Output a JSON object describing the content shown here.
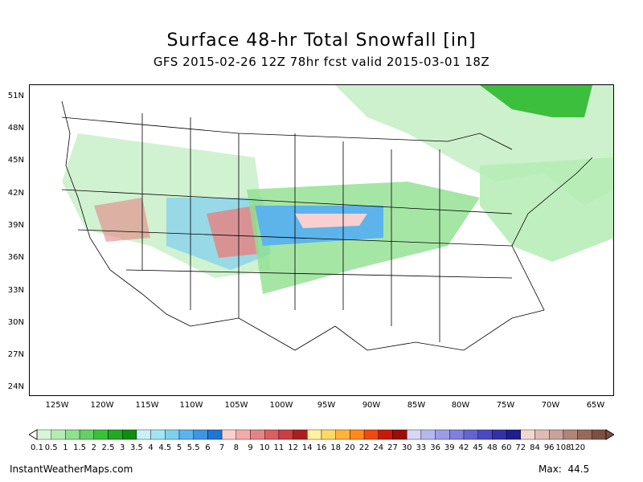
{
  "title": "Surface 48-hr Total Snowfall [in]",
  "subtitle": "GFS 2015-02-26 12Z 78hr fcst valid 2015-03-01 18Z",
  "lat_labels": [
    "51N",
    "48N",
    "45N",
    "42N",
    "39N",
    "36N",
    "33N",
    "30N",
    "27N",
    "24N"
  ],
  "lon_labels": [
    "125W",
    "120W",
    "115W",
    "110W",
    "105W",
    "100W",
    "95W",
    "90W",
    "85W",
    "80W",
    "75W",
    "70W",
    "65W"
  ],
  "colorbar": {
    "labels": [
      "0.1",
      "0.5",
      "1",
      "1.5",
      "2",
      "2.5",
      "3",
      "3.5",
      "4",
      "4.5",
      "5",
      "5.5",
      "6",
      "7",
      "8",
      "9",
      "10",
      "11",
      "12",
      "14",
      "16",
      "18",
      "20",
      "22",
      "24",
      "27",
      "30",
      "33",
      "36",
      "39",
      "42",
      "45",
      "48",
      "60",
      "72",
      "84",
      "96",
      "108",
      "120"
    ],
    "colors": [
      "#d9f5d9",
      "#b4ecb4",
      "#8fe08f",
      "#66d066",
      "#3cbf3c",
      "#22a822",
      "#108c10",
      "#c9f0f7",
      "#a3e4f3",
      "#7fcff0",
      "#5cb4ea",
      "#3e95e0",
      "#2076d3",
      "#f9d0d0",
      "#f2aaaa",
      "#e48585",
      "#d96060",
      "#c94040",
      "#a82020",
      "#fff2a0",
      "#ffd86a",
      "#ffb33c",
      "#ff8a1c",
      "#ef4a10",
      "#c81a0a",
      "#9a0d0d",
      "#d6d6f5",
      "#b7b7ef",
      "#9c9ce6",
      "#8080dc",
      "#6464cf",
      "#4a4ac0",
      "#3232a8",
      "#1e1e8c",
      "#f0d6d0",
      "#dcbcb4",
      "#c8a29a",
      "#b08478",
      "#97695c",
      "#7c4f43"
    ]
  },
  "footer": {
    "site": "InstantWeatherMaps.com",
    "max_label": "Max:",
    "max_value": "44.5"
  }
}
